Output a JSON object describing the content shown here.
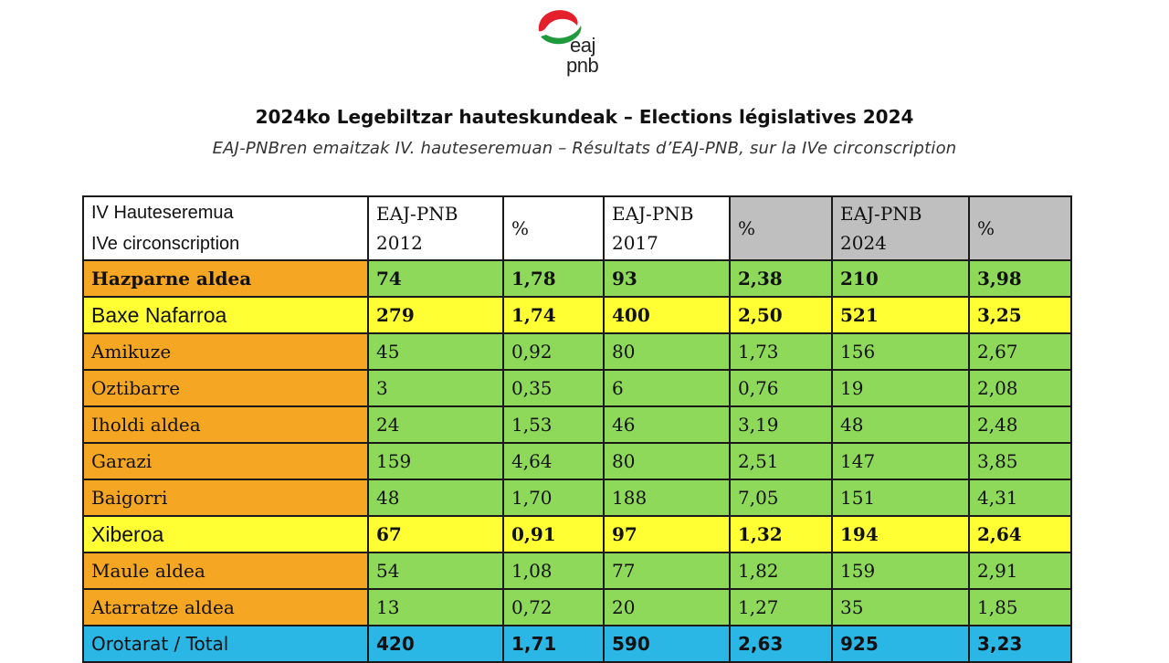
{
  "logo": {
    "text_line1": "eaj",
    "text_line2": "pnb"
  },
  "header": {
    "title": "2024ko Legebiltzar hauteskundeak – Elections législatives 2024",
    "subtitle": "EAJ-PNBren emaitzak IV. hauteseremuan – Résultats d’EAJ-PNB, sur la IVe circonscription"
  },
  "table": {
    "header": {
      "label_line1": "IV Hauteseremua",
      "label_line2": "IVe circonscription",
      "cols": [
        {
          "line1": "EAJ-PNB",
          "line2": "2012"
        },
        {
          "line1": "%",
          "line2": ""
        },
        {
          "line1": "EAJ-PNB",
          "line2": "2017"
        },
        {
          "line1": "%",
          "line2": ""
        },
        {
          "line1": "EAJ-PNB",
          "line2": "2024"
        },
        {
          "line1": "%",
          "line2": ""
        }
      ]
    },
    "rows": [
      {
        "label": "Hazparne aldea",
        "values": [
          "74",
          "1,78",
          "93",
          "2,38",
          "210",
          "3,98"
        ],
        "style": "bold"
      },
      {
        "label": "Baxe Nafarroa",
        "values": [
          "279",
          "1,74",
          "400",
          "2,50",
          "521",
          "3,25"
        ],
        "style": "yellow"
      },
      {
        "label": "Amikuze",
        "values": [
          "45",
          "0,92",
          "80",
          "1,73",
          "156",
          "2,67"
        ],
        "style": "green"
      },
      {
        "label": "Oztibarre",
        "values": [
          "3",
          "0,35",
          "6",
          "0,76",
          "19",
          "2,08"
        ],
        "style": "green"
      },
      {
        "label": "Iholdi aldea",
        "values": [
          "24",
          "1,53",
          "46",
          "3,19",
          "48",
          "2,48"
        ],
        "style": "green"
      },
      {
        "label": "Garazi",
        "values": [
          "159",
          "4,64",
          "80",
          "2,51",
          "147",
          "3,85"
        ],
        "style": "green"
      },
      {
        "label": "Baigorri",
        "values": [
          "48",
          "1,70",
          "188",
          "7,05",
          "151",
          "4,31"
        ],
        "style": "green"
      },
      {
        "label": "Xiberoa",
        "values": [
          "67",
          "0,91",
          "97",
          "1,32",
          "194",
          "2,64"
        ],
        "style": "yellow"
      },
      {
        "label": "Maule aldea",
        "values": [
          "54",
          "1,08",
          "77",
          "1,82",
          "159",
          "2,91"
        ],
        "style": "green"
      },
      {
        "label": "Atarratze aldea",
        "values": [
          "13",
          "0,72",
          "20",
          "1,27",
          "35",
          "1,85"
        ],
        "style": "green"
      },
      {
        "label": "Orotarat / Total",
        "values": [
          "420",
          "1,71",
          "590",
          "2,63",
          "925",
          "3,23"
        ],
        "style": "total"
      }
    ]
  },
  "colors": {
    "label_orange": "#f5a623",
    "row_green": "#8ed85a",
    "row_yellow": "#ffff33",
    "total_blue": "#2ab7e6",
    "header_grey": "#bfbfbf",
    "logo_red": "#e3202b",
    "logo_green": "#1f9a3c"
  }
}
